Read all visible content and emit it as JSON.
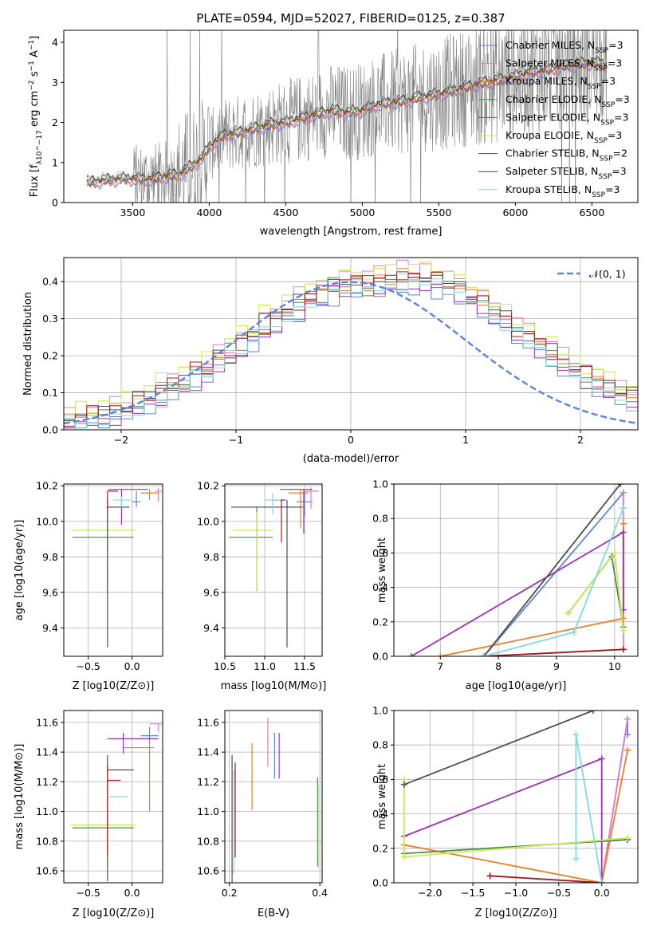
{
  "colors": {
    "Chabrier MILES": "#5b86d6",
    "Salpeter MILES": "#e67ac8",
    "Kroupa MILES": "#ee7d26",
    "Chabrier ELODIE": "#4e8a55",
    "Salpeter ELODIE": "#9b30b8",
    "Kroupa ELODIE": "#c9ec4e",
    "Chabrier STELIB": "#4d4d4d",
    "Salpeter STELIB": "#a01c1c",
    "Kroupa STELIB": "#7fdbe0",
    "normal": "#5b86d6",
    "data": "#808080"
  },
  "chart_data": [
    {
      "id": "spectrum",
      "type": "line",
      "title": "PLATE=0594, MJD=52027, FIBERID=0125, z=0.387",
      "xlabel": "wavelength [Angstrom, rest frame]",
      "ylabel": "Flux [f_λ10^−17 erg cm^−2 s^−1 A^−1]",
      "xlim": [
        3050,
        6800
      ],
      "ylim": [
        0,
        4.3
      ],
      "xticks": [
        "3500",
        "4000",
        "4500",
        "5000",
        "5500",
        "6000",
        "6500"
      ],
      "yticks": [
        "0",
        "1",
        "2",
        "3",
        "4"
      ],
      "legend": [
        "Chabrier MILES, N_SSP=3",
        "Salpeter MILES, N_SSP=3",
        "Kroupa MILES, N_SSP=3",
        "Chabrier ELODIE, N_SSP=3",
        "Salpeter ELODIE, N_SSP=3",
        "Kroupa ELODIE, N_SSP=3",
        "Chabrier STELIB, N_SSP=2",
        "Salpeter STELIB, N_SSP=3",
        "Kroupa STELIB, N_SSP=3"
      ],
      "legend_placement": "upper right",
      "model_continuum": {
        "x": [
          3200,
          3300,
          3450,
          3600,
          3700,
          3800,
          3900,
          3950,
          4000,
          4100,
          4200,
          4300,
          4400,
          4500,
          4600,
          4700,
          4800,
          4900,
          5000,
          5100,
          5200,
          5300,
          5400,
          5500,
          5600,
          5700,
          5800,
          5900,
          6000,
          6100,
          6200,
          6300,
          6400,
          6500,
          6600
        ],
        "y": [
          0.5,
          0.55,
          0.6,
          0.58,
          0.65,
          0.7,
          0.95,
          1.1,
          1.4,
          1.7,
          1.75,
          1.85,
          1.95,
          2.0,
          2.1,
          2.2,
          2.3,
          2.25,
          2.3,
          2.45,
          2.5,
          2.55,
          2.65,
          2.7,
          2.8,
          2.9,
          3.0,
          3.05,
          3.15,
          3.25,
          3.3,
          3.4,
          3.45,
          3.5,
          3.45
        ]
      },
      "data_series": {
        "name": "data",
        "x_range": [
          3200,
          6600
        ],
        "y_range": [
          0,
          4.3
        ]
      }
    },
    {
      "id": "residuals",
      "type": "histogram",
      "xlabel": "(data-model)/error",
      "ylabel": "Normed distribution",
      "xlim": [
        -2.5,
        2.5
      ],
      "ylim": [
        0,
        0.465
      ],
      "xticks": [
        "−2",
        "−1",
        "0",
        "1",
        "2"
      ],
      "yticks": [
        "0.0",
        "0.1",
        "0.2",
        "0.3",
        "0.4"
      ],
      "legend": [
        "𝒩(0, 1)"
      ],
      "legend_placement": "upper right",
      "bin_width": 0.1,
      "model_bins": [
        0.022,
        0.028,
        0.035,
        0.042,
        0.05,
        0.06,
        0.072,
        0.085,
        0.1,
        0.115,
        0.13,
        0.148,
        0.167,
        0.187,
        0.21,
        0.232,
        0.255,
        0.278,
        0.3,
        0.32,
        0.338,
        0.355,
        0.37,
        0.382,
        0.39,
        0.395,
        0.398,
        0.4,
        0.402,
        0.405,
        0.408,
        0.41,
        0.405,
        0.395,
        0.38,
        0.36,
        0.34,
        0.318,
        0.295,
        0.272,
        0.25,
        0.228,
        0.205,
        0.185,
        0.165,
        0.147,
        0.13,
        0.115,
        0.1,
        0.087
      ],
      "variation": [
        0.0,
        0.015,
        -0.01,
        0.02,
        -0.012,
        0.008,
        -0.018,
        0.022,
        -0.005,
        0.012,
        -0.02,
        0.01,
        0.018,
        -0.015,
        0.006,
        -0.008,
        0.025,
        -0.02,
        0.012,
        -0.003,
        0.02,
        -0.012,
        0.01,
        0.03,
        -0.025,
        0.015,
        -0.01,
        0.02,
        -0.006,
        0.012,
        0.025,
        -0.02,
        0.035,
        -0.015,
        0.02,
        -0.03,
        0.015,
        0.01,
        -0.02,
        0.018,
        0.006,
        -0.015,
        0.012,
        0.02,
        -0.008,
        0.015,
        0.02,
        -0.012,
        0.01,
        0.015
      ]
    },
    {
      "id": "age_vs_Z",
      "type": "errorbar",
      "xlabel": "Z [log10(Z/Z⊙)]",
      "ylabel": "age  [log10(age/yr)]",
      "xlim": [
        -0.78,
        0.35
      ],
      "ylim": [
        9.24,
        10.21
      ],
      "xticks": [
        "−0.5",
        "0.0"
      ],
      "yticks": [
        "9.4",
        "9.6",
        "9.8",
        "10.0",
        "10.2"
      ],
      "points": [
        {
          "model": "Chabrier MILES",
          "x": 0.05,
          "y": 10.11,
          "xerr": [
            0.05,
            0.05
          ],
          "yerr": [
            0.03,
            0.06
          ]
        },
        {
          "model": "Salpeter MILES",
          "x": 0.3,
          "y": 10.17,
          "xerr": [
            0.04,
            0.04
          ],
          "yerr": [
            0.06,
            0.02
          ]
        },
        {
          "model": "Kroupa MILES",
          "x": 0.2,
          "y": 10.16,
          "xerr": [
            0.1,
            0.1
          ],
          "yerr": [
            0.04,
            0.02
          ]
        },
        {
          "model": "Chabrier ELODIE",
          "x": -0.28,
          "y": 9.91,
          "xerr": [
            0.4,
            0.3
          ],
          "yerr": [
            0.3,
            0.17
          ]
        },
        {
          "model": "Salpeter ELODIE",
          "x": -0.12,
          "y": 10.18,
          "xerr": [
            0.15,
            0.3
          ],
          "yerr": [
            0.2,
            0.0
          ]
        },
        {
          "model": "Kroupa ELODIE",
          "x": -0.28,
          "y": 9.95,
          "xerr": [
            0.42,
            0.32
          ],
          "yerr": [
            0.35,
            0.1
          ]
        },
        {
          "model": "Chabrier STELIB",
          "x": -0.28,
          "y": 10.08,
          "xerr": [
            0.0,
            0.25
          ],
          "yerr": [
            0.79,
            0.04
          ]
        },
        {
          "model": "Salpeter STELIB",
          "x": -0.28,
          "y": 10.17,
          "xerr": [
            0.0,
            0.12
          ],
          "yerr": [
            0.1,
            0.0
          ]
        },
        {
          "model": "Kroupa STELIB",
          "x": -0.12,
          "y": 10.12,
          "xerr": [
            0.1,
            0.1
          ],
          "yerr": [
            0.04,
            0.02
          ]
        }
      ]
    },
    {
      "id": "age_vs_mass",
      "type": "errorbar",
      "xlabel": "mass [log10(M/M⊙)]",
      "ylabel": "",
      "xlim": [
        10.5,
        11.72
      ],
      "ylim": [
        9.24,
        10.21
      ],
      "xticks": [
        "10.5",
        "11.0",
        "11.5"
      ],
      "yticks": [
        "9.4",
        "9.6",
        "9.8",
        "10.0",
        "10.2"
      ],
      "points": [
        {
          "model": "Chabrier MILES",
          "x": 11.5,
          "y": 10.11,
          "xerr": [
            0.1,
            0.1
          ],
          "yerr": [
            0.08,
            0.06
          ]
        },
        {
          "model": "Salpeter MILES",
          "x": 11.58,
          "y": 10.17,
          "xerr": [
            0.08,
            0.1
          ],
          "yerr": [
            0.1,
            0.02
          ]
        },
        {
          "model": "Kroupa MILES",
          "x": 11.45,
          "y": 10.16,
          "xerr": [
            0.15,
            0.1
          ],
          "yerr": [
            0.2,
            0.02
          ]
        },
        {
          "model": "Chabrier ELODIE",
          "x": 10.9,
          "y": 9.91,
          "xerr": [
            0.35,
            0.2
          ],
          "yerr": [
            0.3,
            0.17
          ]
        },
        {
          "model": "Salpeter ELODIE",
          "x": 11.49,
          "y": 10.18,
          "xerr": [
            0.3,
            0.1
          ],
          "yerr": [
            0.25,
            0.0
          ]
        },
        {
          "model": "Kroupa ELODIE",
          "x": 10.9,
          "y": 9.95,
          "xerr": [
            0.3,
            0.2
          ],
          "yerr": [
            0.35,
            0.1
          ]
        },
        {
          "model": "Chabrier STELIB",
          "x": 11.28,
          "y": 10.08,
          "xerr": [
            0.7,
            0.2
          ],
          "yerr": [
            0.79,
            0.04
          ]
        },
        {
          "model": "Salpeter STELIB",
          "x": 11.21,
          "y": 10.12,
          "xerr": [
            0.1,
            0.05
          ],
          "yerr": [
            0.24,
            0.0
          ]
        },
        {
          "model": "Kroupa STELIB",
          "x": 11.1,
          "y": 10.12,
          "xerr": [
            0.1,
            0.1
          ],
          "yerr": [
            0.08,
            0.04
          ]
        }
      ]
    },
    {
      "id": "weight_vs_age",
      "type": "line",
      "xlabel": "age  [log10(age/yr)]",
      "ylabel": "mass weight",
      "xlim": [
        6.2,
        10.4
      ],
      "ylim": [
        0,
        1.0
      ],
      "xticks": [
        "7",
        "8",
        "9",
        "10"
      ],
      "yticks": [
        "0.0",
        "0.2",
        "0.4",
        "0.6",
        "0.8",
        "1.0"
      ],
      "series": [
        {
          "model": "Chabrier MILES",
          "x": [
            7.75,
            10.15,
            10.15
          ],
          "y": [
            0.0,
            0.95,
            0.86
          ]
        },
        {
          "model": "Salpeter MILES",
          "x": [
            7.75,
            10.15,
            10.15
          ],
          "y": [
            0.0,
            0.04,
            0.95
          ]
        },
        {
          "model": "Kroupa MILES",
          "x": [
            7.0,
            10.15,
            10.15
          ],
          "y": [
            0.0,
            0.22,
            0.77
          ]
        },
        {
          "model": "Chabrier ELODIE",
          "x": [
            9.2,
            9.95,
            10.15
          ],
          "y": [
            0.25,
            0.58,
            0.17
          ]
        },
        {
          "model": "Salpeter ELODIE",
          "x": [
            6.5,
            10.15,
            10.15
          ],
          "y": [
            0.0,
            0.72,
            0.27
          ]
        },
        {
          "model": "Kroupa ELODIE",
          "x": [
            9.2,
            10.0,
            10.15
          ],
          "y": [
            0.25,
            0.6,
            0.15
          ]
        },
        {
          "model": "Chabrier STELIB",
          "x": [
            7.75,
            10.1
          ],
          "y": [
            0.0,
            1.0
          ]
        },
        {
          "model": "Salpeter STELIB",
          "x": [
            7.75,
            10.15
          ],
          "y": [
            0.0,
            0.04
          ]
        },
        {
          "model": "Kroupa STELIB",
          "x": [
            7.75,
            9.3,
            10.15
          ],
          "y": [
            0.0,
            0.14,
            0.86
          ]
        }
      ]
    },
    {
      "id": "mass_vs_Z",
      "type": "errorbar",
      "xlabel": "Z [log10(Z/Z⊙)]",
      "ylabel": "mass [log10(M/M⊙)]",
      "xlim": [
        -0.78,
        0.35
      ],
      "ylim": [
        10.52,
        11.68
      ],
      "xticks": [
        "−0.5",
        "0.0"
      ],
      "yticks": [
        "10.6",
        "10.8",
        "11.0",
        "11.2",
        "11.4",
        "11.6"
      ],
      "points": [
        {
          "model": "Chabrier MILES",
          "x": 0.2,
          "y": 11.51,
          "xerr": [
            0.1,
            0.1
          ],
          "yerr": [
            0.05,
            0.06
          ]
        },
        {
          "model": "Salpeter MILES",
          "x": 0.3,
          "y": 11.59,
          "xerr": [
            0.1,
            0.04
          ],
          "yerr": [
            0.05,
            0.0
          ]
        },
        {
          "model": "Kroupa MILES",
          "x": 0.2,
          "y": 11.43,
          "xerr": [
            0.3,
            0.05
          ],
          "yerr": [
            0.43,
            0.05
          ]
        },
        {
          "model": "Chabrier ELODIE",
          "x": -0.28,
          "y": 10.89,
          "xerr": [
            0.4,
            0.3
          ],
          "yerr": [
            0.2,
            0.06
          ]
        },
        {
          "model": "Salpeter ELODIE",
          "x": -0.1,
          "y": 11.49,
          "xerr": [
            0.18,
            0.4
          ],
          "yerr": [
            0.1,
            0.04
          ]
        },
        {
          "model": "Kroupa ELODIE",
          "x": -0.28,
          "y": 10.91,
          "xerr": [
            0.42,
            0.32
          ],
          "yerr": [
            0.25,
            0.0
          ]
        },
        {
          "model": "Chabrier STELIB",
          "x": -0.28,
          "y": 11.28,
          "xerr": [
            0.0,
            0.3
          ],
          "yerr": [
            0.75,
            0.1
          ]
        },
        {
          "model": "Salpeter STELIB",
          "x": -0.28,
          "y": 11.21,
          "xerr": [
            0.0,
            0.15
          ],
          "yerr": [
            0.5,
            0.1
          ]
        },
        {
          "model": "Kroupa STELIB",
          "x": -0.15,
          "y": 11.1,
          "xerr": [
            0.13,
            0.1
          ],
          "yerr": [
            0.0,
            0.0
          ]
        }
      ]
    },
    {
      "id": "mass_vs_EBV",
      "type": "errorbar",
      "xlabel": "E(B-V)",
      "ylabel": "",
      "xlim": [
        0.19,
        0.405
      ],
      "ylim": [
        10.52,
        11.68
      ],
      "xticks": [
        "0.2",
        "0.4"
      ],
      "yticks": [
        "10.6",
        "10.8",
        "11.0",
        "11.2",
        "11.4",
        "11.6"
      ],
      "points": [
        {
          "model": "Chabrier MILES",
          "x": 0.3,
          "y": 11.4,
          "yerr": [
            0.18,
            0.13
          ]
        },
        {
          "model": "Salpeter MILES",
          "x": 0.285,
          "y": 11.45,
          "yerr": [
            0.15,
            0.18
          ]
        },
        {
          "model": "Kroupa MILES",
          "x": 0.25,
          "y": 11.23,
          "yerr": [
            0.22,
            0.23
          ]
        },
        {
          "model": "Chabrier ELODIE",
          "x": 0.395,
          "y": 10.93,
          "yerr": [
            0.3,
            0.3
          ]
        },
        {
          "model": "Salpeter ELODIE",
          "x": 0.31,
          "y": 11.37,
          "yerr": [
            0.15,
            0.16
          ]
        },
        {
          "model": "Kroupa ELODIE",
          "x": 0.397,
          "y": 10.9,
          "yerr": [
            0.28,
            0.28
          ]
        },
        {
          "model": "Chabrier STELIB",
          "x": 0.206,
          "y": 10.95,
          "yerr": [
            0.43,
            0.43
          ]
        },
        {
          "model": "Salpeter STELIB",
          "x": 0.213,
          "y": 11.01,
          "yerr": [
            0.32,
            0.32
          ]
        },
        {
          "model": "Kroupa STELIB",
          "x": 0.21,
          "y": 10.93,
          "yerr": [
            0.35,
            0.35
          ]
        }
      ]
    },
    {
      "id": "weight_vs_Z",
      "type": "line",
      "xlabel": "Z [log10(Z/Z⊙)]",
      "ylabel": "mass weight",
      "xlim": [
        -2.42,
        0.42
      ],
      "ylim": [
        0,
        1.0
      ],
      "xticks": [
        "−2.0",
        "−1.5",
        "−1.0",
        "−0.5",
        "0.0"
      ],
      "yticks": [
        "0.0",
        "0.2",
        "0.4",
        "0.6",
        "0.8",
        "1.0"
      ],
      "series": [
        {
          "model": "Chabrier MILES",
          "x": [
            0.0,
            0.3,
            0.3
          ],
          "y": [
            0.0,
            0.95,
            0.86
          ]
        },
        {
          "model": "Salpeter MILES",
          "x": [
            -1.3,
            0.0,
            0.3
          ],
          "y": [
            0.04,
            0.0,
            0.95
          ]
        },
        {
          "model": "Kroupa MILES",
          "x": [
            -2.3,
            0.0,
            0.3
          ],
          "y": [
            0.22,
            0.0,
            0.77
          ]
        },
        {
          "model": "Chabrier ELODIE",
          "x": [
            -2.3,
            0.3,
            0.3
          ],
          "y": [
            0.17,
            0.25,
            0.25
          ]
        },
        {
          "model": "Salpeter ELODIE",
          "x": [
            -2.3,
            0.0,
            0.0
          ],
          "y": [
            0.27,
            0.72,
            0.0
          ]
        },
        {
          "model": "Kroupa ELODIE",
          "x": [
            -2.3,
            -2.3,
            0.3
          ],
          "y": [
            0.6,
            0.15,
            0.26
          ]
        },
        {
          "model": "Chabrier STELIB",
          "x": [
            -2.3,
            -0.1
          ],
          "y": [
            0.57,
            1.0
          ]
        },
        {
          "model": "Salpeter STELIB",
          "x": [
            -1.3,
            0.0
          ],
          "y": [
            0.04,
            0.0
          ]
        },
        {
          "model": "Kroupa STELIB",
          "x": [
            -0.3,
            -0.3,
            0.0
          ],
          "y": [
            0.14,
            0.86,
            0.0
          ]
        }
      ]
    }
  ]
}
